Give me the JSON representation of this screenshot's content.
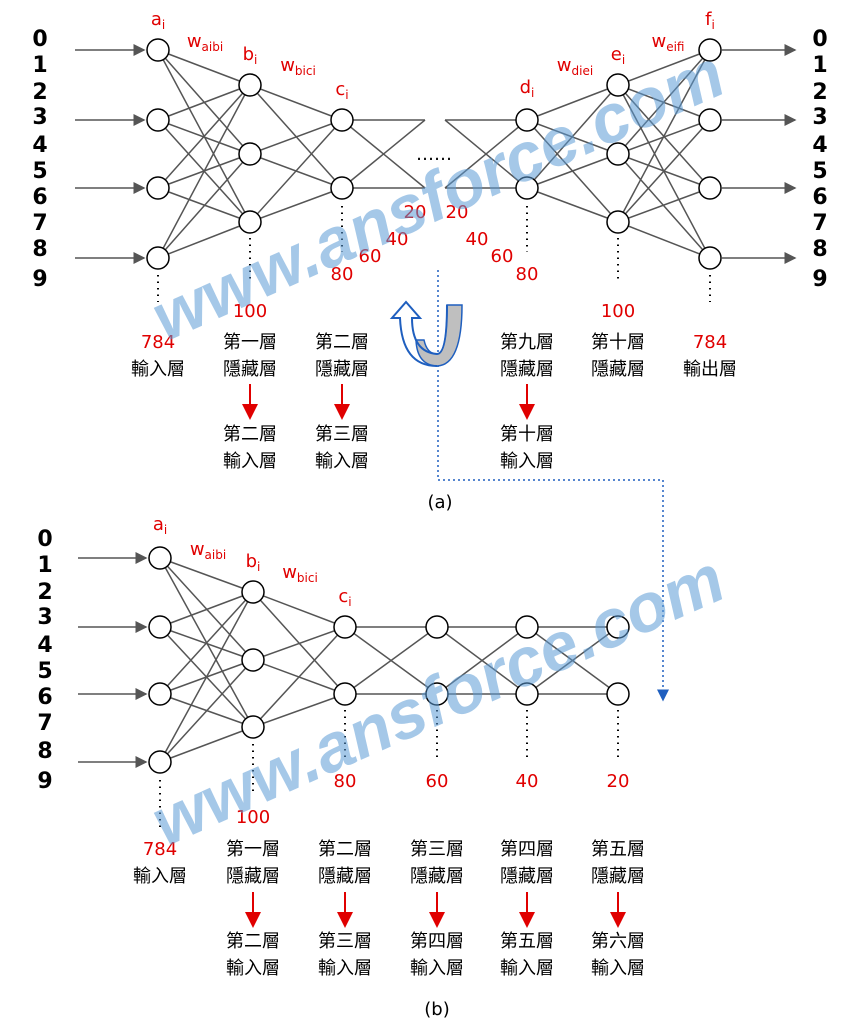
{
  "watermark": "www.ansforce.com",
  "panel_a": {
    "input_digits": [
      "0",
      "1",
      "2",
      "3",
      "4",
      "5",
      "6",
      "7",
      "8",
      "9"
    ],
    "output_digits": [
      "0",
      "1",
      "2",
      "3",
      "4",
      "5",
      "6",
      "7",
      "8",
      "9"
    ],
    "node_labels": [
      {
        "base": "a",
        "sub": "i"
      },
      {
        "base": "b",
        "sub": "i"
      },
      {
        "base": "c",
        "sub": "i"
      },
      {
        "base": "d",
        "sub": "i"
      },
      {
        "base": "e",
        "sub": "i"
      },
      {
        "base": "f",
        "sub": "i"
      }
    ],
    "weight_labels": [
      {
        "base": "w",
        "sub": "aibi"
      },
      {
        "base": "w",
        "sub": "bici"
      },
      {
        "base": "w",
        "sub": "diei"
      },
      {
        "base": "w",
        "sub": "eifi"
      }
    ],
    "ellipsis": "……",
    "bottleneck_sizes": [
      60,
      40,
      20,
      20,
      40,
      60
    ],
    "layer_labels": [
      {
        "size": 784,
        "name": "輸入層"
      },
      {
        "size": 100,
        "name": "第一層",
        "role": "隱藏層",
        "next": "第二層",
        "next_role": "輸入層"
      },
      {
        "size": 80,
        "name": "第二層",
        "role": "隱藏層",
        "next": "第三層",
        "next_role": "輸入層"
      },
      {
        "size": 80,
        "name": "第九層",
        "role": "隱藏層",
        "next": "第十層",
        "next_role": "輸入層"
      },
      {
        "size": 100,
        "name": "第十層",
        "role": "隱藏層"
      },
      {
        "size": 784,
        "name": "輸出層"
      }
    ],
    "caption": "(a)"
  },
  "panel_b": {
    "input_digits": [
      "0",
      "1",
      "2",
      "3",
      "4",
      "5",
      "6",
      "7",
      "8",
      "9"
    ],
    "node_labels": [
      {
        "base": "a",
        "sub": "i"
      },
      {
        "base": "b",
        "sub": "i"
      },
      {
        "base": "c",
        "sub": "i"
      }
    ],
    "weight_labels": [
      {
        "base": "w",
        "sub": "aibi"
      },
      {
        "base": "w",
        "sub": "bici"
      }
    ],
    "layer_labels": [
      {
        "size": 784,
        "name": "輸入層"
      },
      {
        "size": 100,
        "name": "第一層",
        "role": "隱藏層",
        "next": "第二層",
        "next_role": "輸入層"
      },
      {
        "size": 80,
        "name": "第二層",
        "role": "隱藏層",
        "next": "第三層",
        "next_role": "輸入層"
      },
      {
        "size": 60,
        "name": "第三層",
        "role": "隱藏層",
        "next": "第四層",
        "next_role": "輸入層"
      },
      {
        "size": 40,
        "name": "第四層",
        "role": "隱藏層",
        "next": "第五層",
        "next_role": "輸入層"
      },
      {
        "size": 20,
        "name": "第五層",
        "role": "隱藏層",
        "next": "第六層",
        "next_role": "輸入層"
      }
    ],
    "caption": "(b)"
  }
}
